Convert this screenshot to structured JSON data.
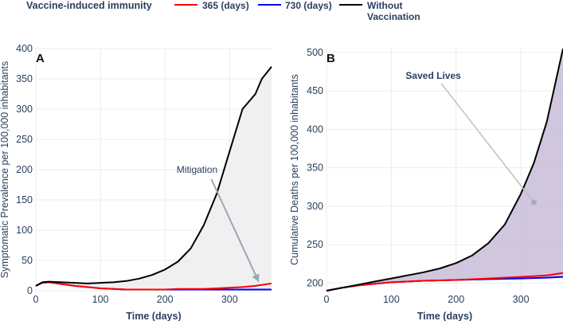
{
  "legend": {
    "title": "Vaccine-induced immunity",
    "items": [
      {
        "label": "365 (days)",
        "color": "#ff0000"
      },
      {
        "label": "730 (days)",
        "color": "#0000ff"
      },
      {
        "label": "Without Vaccination",
        "color": "#000000",
        "lines": [
          "Without",
          "Vaccination"
        ]
      }
    ]
  },
  "chart_data": [
    {
      "panel_label": "A",
      "type": "line",
      "xlabel": "Time (days)",
      "ylabel": "Symptomatic Prevalence per 100,000 inhabitants",
      "xlim": [
        0,
        365
      ],
      "ylim": [
        0,
        400
      ],
      "xticks": [
        0,
        100,
        200,
        300
      ],
      "yticks": [
        0,
        50,
        100,
        150,
        200,
        250,
        300,
        350,
        400
      ],
      "grid": true,
      "annotation": {
        "text": "Mitigation",
        "x_arrow_from": [
          225,
          200
        ],
        "x_arrow_to": [
          345,
          15
        ]
      },
      "shaded_region": {
        "between": [
          "Without Vaccination",
          "730 (days)"
        ],
        "color": "#eeeeee"
      },
      "series": [
        {
          "name": "Without Vaccination",
          "color": "#000000",
          "x": [
            0,
            10,
            20,
            40,
            60,
            80,
            100,
            120,
            140,
            160,
            180,
            200,
            220,
            240,
            260,
            280,
            300,
            320,
            340,
            350,
            365
          ],
          "y": [
            8,
            14,
            15,
            14,
            13,
            12,
            13,
            14,
            16,
            20,
            26,
            35,
            48,
            70,
            108,
            160,
            230,
            300,
            325,
            350,
            370
          ]
        },
        {
          "name": "365 (days)",
          "color": "#ff0000",
          "x": [
            0,
            10,
            20,
            40,
            60,
            80,
            100,
            120,
            140,
            160,
            180,
            200,
            220,
            240,
            260,
            280,
            300,
            320,
            340,
            365
          ],
          "y": [
            8,
            13,
            14,
            11,
            8,
            6,
            4,
            3,
            2,
            2,
            2,
            2,
            3,
            3,
            3,
            4,
            5,
            6,
            8,
            12
          ]
        },
        {
          "name": "730 (days)",
          "color": "#0000ff",
          "x": [
            0,
            10,
            20,
            40,
            60,
            80,
            100,
            120,
            140,
            160,
            180,
            200,
            220,
            240,
            260,
            280,
            300,
            320,
            340,
            365
          ],
          "y": [
            8,
            13,
            14,
            11,
            8,
            6,
            4,
            3,
            2,
            2,
            2,
            2,
            2,
            2,
            2,
            2,
            2,
            2,
            2,
            2
          ]
        }
      ]
    },
    {
      "panel_label": "B",
      "type": "line",
      "xlabel": "Time (days)",
      "ylabel": "Cumulative Deaths per 100,000 inhabitants",
      "xlim": [
        0,
        365
      ],
      "ylim": [
        190,
        505
      ],
      "xticks": [
        0,
        100,
        200,
        300
      ],
      "yticks": [
        200,
        250,
        300,
        350,
        400,
        450,
        500
      ],
      "grid": true,
      "annotation": {
        "text": "Saved Lives",
        "x_arrow_from": [
          155,
          470
        ],
        "x_arrow_to": [
          320,
          305
        ]
      },
      "shaded_region": {
        "between": [
          "Without Vaccination",
          "730 (days)"
        ],
        "color": "#c8bcd8"
      },
      "series": [
        {
          "name": "Without Vaccination",
          "color": "#000000",
          "x": [
            0,
            25,
            50,
            75,
            100,
            125,
            150,
            175,
            200,
            225,
            250,
            275,
            300,
            320,
            340,
            365
          ],
          "y": [
            190,
            194,
            198,
            202,
            206,
            210,
            214,
            219,
            226,
            236,
            252,
            276,
            316,
            356,
            410,
            505
          ]
        },
        {
          "name": "365 (days)",
          "color": "#ff0000",
          "x": [
            0,
            25,
            50,
            75,
            100,
            150,
            200,
            250,
            300,
            340,
            365
          ],
          "y": [
            190,
            194,
            197,
            199,
            201,
            203,
            204,
            206,
            208,
            210,
            213
          ]
        },
        {
          "name": "730 (days)",
          "color": "#0000ff",
          "x": [
            0,
            25,
            50,
            75,
            100,
            150,
            200,
            250,
            300,
            340,
            365
          ],
          "y": [
            190,
            194,
            197,
            199,
            201,
            203,
            204,
            205,
            206,
            207,
            208
          ]
        }
      ]
    }
  ]
}
